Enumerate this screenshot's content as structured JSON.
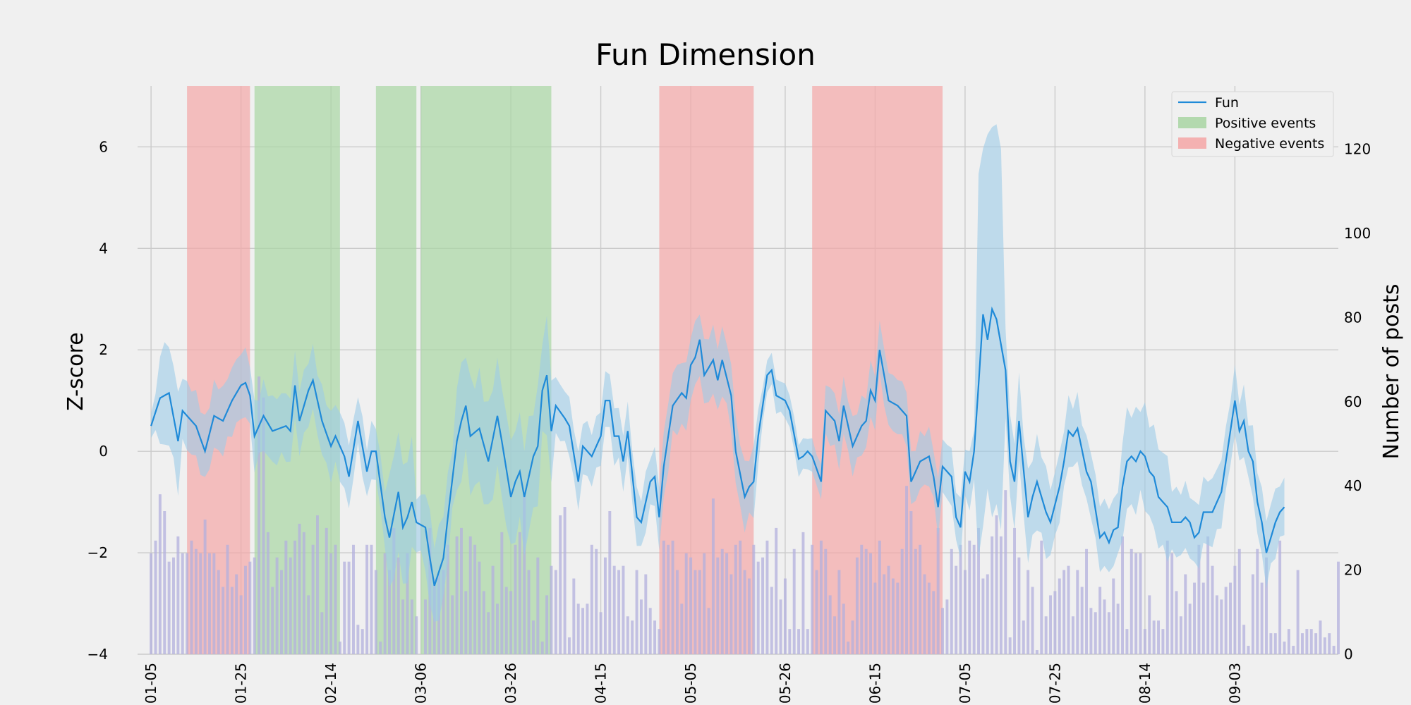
{
  "chart_data": {
    "type": "line",
    "title": "Fun Dimension",
    "ylabel_left": "Z-score",
    "ylabel_right": "Number of posts",
    "ylim_left": [
      -4,
      7.2
    ],
    "ylim_right": [
      0,
      135
    ],
    "yticks_left": [
      "−4",
      "−2",
      "0",
      "2",
      "4",
      "6"
    ],
    "yticks_left_values": [
      -4,
      -2,
      0,
      2,
      4,
      6
    ],
    "yticks_right": [
      "0",
      "20",
      "40",
      "60",
      "80",
      "100",
      "120"
    ],
    "yticks_right_values": [
      0,
      20,
      40,
      60,
      80,
      100,
      120
    ],
    "x_start_date": "01-05",
    "xticks": [
      "01-05",
      "01-25",
      "02-14",
      "03-06",
      "03-26",
      "04-15",
      "05-05",
      "05-26",
      "06-15",
      "07-05",
      "07-25",
      "08-14",
      "09-03"
    ],
    "xtick_days": [
      0,
      20,
      40,
      60,
      80,
      100,
      120,
      141,
      161,
      181,
      201,
      221,
      241
    ],
    "x_range_days": [
      -3,
      264
    ],
    "grid": true,
    "legend_position": "top-right",
    "legend": [
      {
        "label": "Fun",
        "kind": "line",
        "color": "#1f8ad8"
      },
      {
        "label": "Positive events",
        "kind": "patch",
        "color": "#a8d5a2"
      },
      {
        "label": "Negative events",
        "kind": "patch",
        "color": "#f4a6a6"
      }
    ],
    "colors": {
      "line": "#1f8ad8",
      "band": "#9ccbe8",
      "bars": "#b3b0dd",
      "positive": "#a8d5a2",
      "negative": "#f4a6a6"
    },
    "negative_events_days": [
      [
        8,
        22
      ],
      [
        23,
        22.5
      ],
      [
        113,
        134
      ],
      [
        147,
        176
      ]
    ],
    "positive_events_days": [
      [
        23,
        42
      ],
      [
        50,
        59
      ],
      [
        60,
        89
      ]
    ],
    "series": [
      {
        "name": "Fun",
        "key_points": [
          [
            0,
            0.5
          ],
          [
            2,
            1.05
          ],
          [
            4,
            1.15
          ],
          [
            6,
            0.2
          ],
          [
            7,
            0.8
          ],
          [
            10,
            0.5
          ],
          [
            12,
            0
          ],
          [
            14,
            0.7
          ],
          [
            16,
            0.6
          ],
          [
            18,
            1.0
          ],
          [
            20,
            1.3
          ],
          [
            21,
            1.35
          ],
          [
            22,
            1.1
          ],
          [
            23,
            0.3
          ],
          [
            25,
            0.7
          ],
          [
            27,
            0.4
          ],
          [
            30,
            0.5
          ],
          [
            31,
            0.4
          ],
          [
            32,
            1.3
          ],
          [
            33,
            0.6
          ],
          [
            35,
            1.2
          ],
          [
            36,
            1.4
          ],
          [
            38,
            0.6
          ],
          [
            40,
            0.1
          ],
          [
            41,
            0.3
          ],
          [
            43,
            -0.1
          ],
          [
            44,
            -0.5
          ],
          [
            46,
            0.6
          ],
          [
            48,
            -0.4
          ],
          [
            49,
            0
          ],
          [
            50,
            0
          ],
          [
            52,
            -1.3
          ],
          [
            53,
            -1.7
          ],
          [
            55,
            -0.8
          ],
          [
            56,
            -1.5
          ],
          [
            57,
            -1.3
          ],
          [
            58,
            -1.0
          ],
          [
            59,
            -1.4
          ],
          [
            61,
            -1.5
          ],
          [
            62,
            -2.1
          ],
          [
            63,
            -2.65
          ],
          [
            65,
            -2.1
          ],
          [
            66,
            -1.3
          ],
          [
            68,
            0.2
          ],
          [
            69,
            0.6
          ],
          [
            70,
            0.9
          ],
          [
            71,
            0.3
          ],
          [
            73,
            0.45
          ],
          [
            75,
            -0.2
          ],
          [
            77,
            0.7
          ],
          [
            78,
            0.2
          ],
          [
            80,
            -0.9
          ],
          [
            81,
            -0.6
          ],
          [
            82,
            -0.4
          ],
          [
            83,
            -0.9
          ],
          [
            85,
            -0.1
          ],
          [
            86,
            0.1
          ],
          [
            87,
            1.2
          ],
          [
            88,
            1.5
          ],
          [
            89,
            0.4
          ],
          [
            90,
            0.9
          ],
          [
            92,
            0.65
          ],
          [
            93,
            0.5
          ],
          [
            95,
            -0.6
          ],
          [
            96,
            0.1
          ],
          [
            98,
            -0.1
          ],
          [
            100,
            0.3
          ],
          [
            101,
            1.0
          ],
          [
            102,
            1.0
          ],
          [
            103,
            0.3
          ],
          [
            104,
            0.3
          ],
          [
            105,
            -0.2
          ],
          [
            106,
            0.4
          ],
          [
            108,
            -1.3
          ],
          [
            109,
            -1.4
          ],
          [
            111,
            -0.6
          ],
          [
            112,
            -0.5
          ],
          [
            113,
            -1.3
          ],
          [
            114,
            -0.3
          ],
          [
            116,
            0.9
          ],
          [
            118,
            1.15
          ],
          [
            119,
            1.05
          ],
          [
            120,
            1.7
          ],
          [
            121,
            1.85
          ],
          [
            122,
            2.2
          ],
          [
            123,
            1.5
          ],
          [
            125,
            1.8
          ],
          [
            126,
            1.4
          ],
          [
            127,
            1.8
          ],
          [
            129,
            1.1
          ],
          [
            130,
            0
          ],
          [
            132,
            -0.9
          ],
          [
            133,
            -0.7
          ],
          [
            134,
            -0.6
          ],
          [
            135,
            0.3
          ],
          [
            137,
            1.5
          ],
          [
            138,
            1.6
          ],
          [
            139,
            1.1
          ],
          [
            141,
            1.0
          ],
          [
            142,
            0.8
          ],
          [
            144,
            -0.15
          ],
          [
            145,
            -0.1
          ],
          [
            146,
            0
          ],
          [
            147,
            -0.1
          ],
          [
            149,
            -0.6
          ],
          [
            150,
            0.8
          ],
          [
            152,
            0.6
          ],
          [
            153,
            0.2
          ],
          [
            154,
            0.9
          ],
          [
            156,
            0.1
          ],
          [
            158,
            0.5
          ],
          [
            159,
            0.6
          ],
          [
            160,
            1.2
          ],
          [
            161,
            1.0
          ],
          [
            162,
            2.0
          ],
          [
            164,
            1.0
          ],
          [
            166,
            0.9
          ],
          [
            168,
            0.7
          ],
          [
            169,
            -0.6
          ],
          [
            171,
            -0.2
          ],
          [
            173,
            -0.1
          ],
          [
            174,
            -0.5
          ],
          [
            175,
            -1.1
          ],
          [
            176,
            -0.3
          ],
          [
            178,
            -0.5
          ],
          [
            179,
            -1.3
          ],
          [
            180,
            -1.5
          ],
          [
            181,
            -0.4
          ],
          [
            182,
            -0.6
          ],
          [
            183,
            0
          ],
          [
            184,
            1.3
          ],
          [
            185,
            2.7
          ],
          [
            186,
            2.2
          ],
          [
            187,
            2.8
          ],
          [
            188,
            2.6
          ],
          [
            189,
            2.1
          ],
          [
            190,
            1.6
          ],
          [
            191,
            -0.2
          ],
          [
            192,
            -0.6
          ],
          [
            193,
            0.6
          ],
          [
            195,
            -1.3
          ],
          [
            196,
            -0.9
          ],
          [
            197,
            -0.6
          ],
          [
            199,
            -1.2
          ],
          [
            200,
            -1.4
          ],
          [
            202,
            -0.7
          ],
          [
            203,
            -0.2
          ],
          [
            204,
            0.4
          ],
          [
            205,
            0.3
          ],
          [
            206,
            0.45
          ],
          [
            208,
            -0.4
          ],
          [
            209,
            -0.6
          ],
          [
            211,
            -1.7
          ],
          [
            212,
            -1.6
          ],
          [
            213,
            -1.8
          ],
          [
            214,
            -1.55
          ],
          [
            215,
            -1.5
          ],
          [
            216,
            -0.7
          ],
          [
            217,
            -0.2
          ],
          [
            218,
            -0.1
          ],
          [
            219,
            -0.2
          ],
          [
            220,
            0
          ],
          [
            221,
            -0.1
          ],
          [
            222,
            -0.4
          ],
          [
            223,
            -0.5
          ],
          [
            224,
            -0.9
          ],
          [
            226,
            -1.1
          ],
          [
            227,
            -1.4
          ],
          [
            229,
            -1.4
          ],
          [
            230,
            -1.3
          ],
          [
            231,
            -1.4
          ],
          [
            232,
            -1.7
          ],
          [
            233,
            -1.6
          ],
          [
            234,
            -1.2
          ],
          [
            236,
            -1.2
          ],
          [
            237,
            -1.0
          ],
          [
            238,
            -0.8
          ],
          [
            239,
            -0.2
          ],
          [
            240,
            0.4
          ],
          [
            241,
            1.0
          ],
          [
            242,
            0.4
          ],
          [
            243,
            0.6
          ],
          [
            244,
            0
          ],
          [
            245,
            -0.2
          ],
          [
            246,
            -1.0
          ],
          [
            247,
            -1.4
          ],
          [
            248,
            -2.0
          ],
          [
            249,
            -1.7
          ],
          [
            250,
            -1.4
          ],
          [
            251,
            -1.2
          ],
          [
            252,
            -1.1
          ]
        ],
        "ci_width_segments": [
          [
            0,
            6,
            0.3
          ],
          [
            2,
            7,
            0.9
          ],
          [
            7,
            45,
            0.6
          ],
          [
            45,
            60,
            0.5
          ],
          [
            53,
            58,
            1.1
          ],
          [
            61,
            66,
            0.8
          ],
          [
            68,
            90,
            1.0
          ],
          [
            90,
            125,
            0.5
          ],
          [
            113,
            135,
            0.6
          ],
          [
            136,
            150,
            0.3
          ],
          [
            150,
            180,
            0.5
          ],
          [
            184,
            190,
            3.5
          ],
          [
            190,
            200,
            0.8
          ],
          [
            200,
            250,
            0.6
          ],
          [
            216,
            226,
            0.9
          ]
        ]
      }
    ],
    "bars": {
      "name": "Number of posts",
      "values": [
        24,
        27,
        38,
        34,
        22,
        23,
        28,
        24,
        24,
        27,
        25,
        24,
        32,
        24,
        24,
        20,
        16,
        26,
        16,
        19,
        14,
        21,
        22,
        23,
        66,
        61,
        29,
        16,
        23,
        20,
        27,
        23,
        27,
        31,
        29,
        14,
        26,
        33,
        10,
        30,
        24,
        26,
        3,
        22,
        22,
        26,
        7,
        6,
        26,
        26,
        20,
        3,
        24,
        20,
        30,
        23,
        13,
        24,
        13,
        9,
        0,
        13,
        30,
        18,
        19,
        20,
        26,
        14,
        28,
        30,
        15,
        28,
        26,
        22,
        15,
        10,
        21,
        12,
        29,
        16,
        15,
        26,
        29,
        39,
        20,
        8,
        23,
        3,
        14,
        21,
        20,
        33,
        35,
        4,
        18,
        12,
        11,
        12,
        26,
        25,
        10,
        23,
        34,
        21,
        20,
        21,
        9,
        8,
        20,
        13,
        19,
        11,
        8,
        6,
        27,
        26,
        27,
        20,
        12,
        24,
        23,
        20,
        20,
        24,
        11,
        37,
        23,
        25,
        24,
        19,
        26,
        27,
        20,
        18,
        26,
        22,
        23,
        27,
        16,
        30,
        13,
        18,
        6,
        25,
        6,
        29,
        6,
        26,
        20,
        27,
        25,
        14,
        9,
        20,
        12,
        3,
        8,
        23,
        26,
        25,
        24,
        17,
        27,
        19,
        21,
        18,
        17,
        25,
        40,
        34,
        25,
        26,
        19,
        17,
        15,
        30,
        11,
        13,
        25,
        21,
        26,
        20,
        27,
        26,
        30,
        18,
        19,
        28,
        33,
        28,
        39,
        4,
        30,
        23,
        8,
        20,
        16,
        1,
        27,
        9,
        14,
        15,
        18,
        20,
        21,
        9,
        20,
        16,
        25,
        11,
        10,
        16,
        13,
        10,
        18,
        12,
        28,
        6,
        25,
        24,
        24,
        6,
        14,
        8,
        8,
        6,
        27,
        24,
        15,
        9,
        19,
        12,
        17,
        26,
        17,
        28,
        21,
        14,
        13,
        16,
        17,
        21,
        25,
        7,
        2,
        19,
        25,
        17,
        23,
        5,
        5,
        27,
        3,
        6,
        2,
        20,
        5,
        6,
        6,
        5,
        8,
        4,
        5,
        2,
        22
      ]
    }
  }
}
